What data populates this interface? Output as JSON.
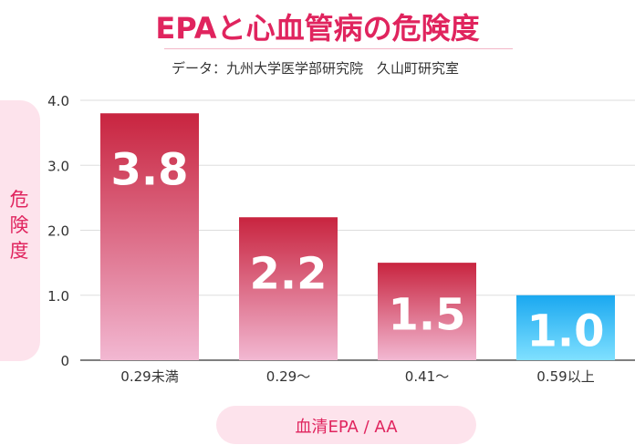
{
  "header": {
    "title": "EPAと心血管病の危険度",
    "source": "データ：九州大学医学部研究院　久山町研究室"
  },
  "chart_data": {
    "type": "bar",
    "categories": [
      "0.29未満",
      "0.29〜",
      "0.41〜",
      "0.59以上"
    ],
    "values": [
      3.8,
      2.2,
      1.5,
      1.0
    ],
    "value_labels": [
      "3.8",
      "2.2",
      "1.5",
      "1.0"
    ],
    "ylabel": "危険度",
    "xlabel": "血清EPA / AA",
    "ylim": [
      0,
      4.0
    ],
    "yticks": [
      0,
      1.0,
      2.0,
      3.0,
      4.0
    ],
    "ytick_labels": [
      "0",
      "1.0",
      "2.0",
      "3.0",
      "4.0"
    ],
    "grid": true,
    "colors": {
      "bar_top": "#c8243f",
      "bar_bottom": "#f2b8d2",
      "reference_top": "#1aa8f0",
      "reference_bottom": "#7fe0ff",
      "axis_text": "#333333",
      "accent": "#e0245e"
    }
  }
}
